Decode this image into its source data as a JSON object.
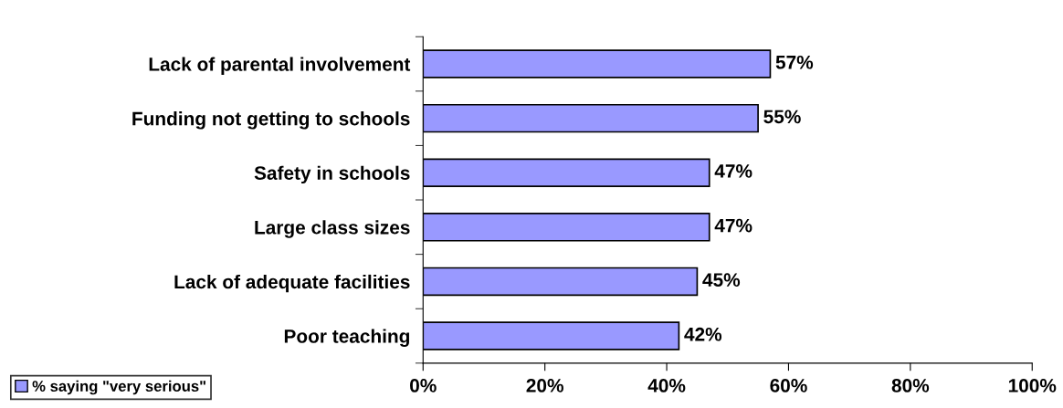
{
  "chart_data": {
    "type": "bar",
    "orientation": "horizontal",
    "categories": [
      "Lack of parental involvement",
      "Funding not getting to schools",
      "Safety in schools",
      "Large class sizes",
      "Lack of adequate facilities",
      "Poor teaching"
    ],
    "series": [
      {
        "name": "% saying \"very serious\"",
        "color": "#9999ff",
        "values": [
          57,
          55,
          47,
          47,
          45,
          42
        ],
        "value_labels": [
          "57%",
          "55%",
          "47%",
          "47%",
          "45%",
          "42%"
        ]
      }
    ],
    "xlim": [
      0,
      100
    ],
    "xticks": [
      {
        "value": 0,
        "label": "0%"
      },
      {
        "value": 20,
        "label": "20%"
      },
      {
        "value": 40,
        "label": "40%"
      },
      {
        "value": 60,
        "label": "60%"
      },
      {
        "value": 80,
        "label": "80%"
      },
      {
        "value": 100,
        "label": "100%"
      }
    ],
    "grid": false,
    "legend": "bottom left"
  }
}
